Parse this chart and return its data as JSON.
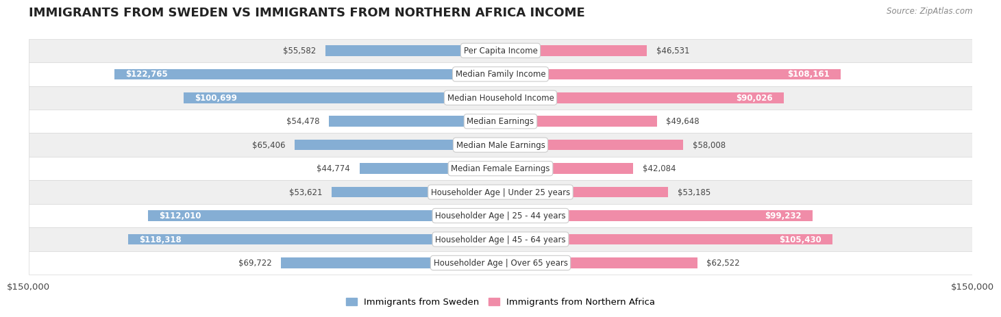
{
  "title": "IMMIGRANTS FROM SWEDEN VS IMMIGRANTS FROM NORTHERN AFRICA INCOME",
  "source": "Source: ZipAtlas.com",
  "categories": [
    "Per Capita Income",
    "Median Family Income",
    "Median Household Income",
    "Median Earnings",
    "Median Male Earnings",
    "Median Female Earnings",
    "Householder Age | Under 25 years",
    "Householder Age | 25 - 44 years",
    "Householder Age | 45 - 64 years",
    "Householder Age | Over 65 years"
  ],
  "sweden_values": [
    55582,
    122765,
    100699,
    54478,
    65406,
    44774,
    53621,
    112010,
    118318,
    69722
  ],
  "africa_values": [
    46531,
    108161,
    90026,
    49648,
    58008,
    42084,
    53185,
    99232,
    105430,
    62522
  ],
  "sweden_color": "#85aed4",
  "africa_color": "#f08ca8",
  "row_bg_odd": "#efefef",
  "row_bg_even": "#ffffff",
  "row_border": "#d8d8d8",
  "max_value": 150000,
  "bar_height": 0.45,
  "sweden_legend": "Immigrants from Sweden",
  "africa_legend": "Immigrants from Northern Africa",
  "x_tick_labels": [
    "$150,000",
    "$150,000"
  ],
  "inside_label_threshold": 75000,
  "label_inside_color": "#ffffff",
  "label_outside_color": "#444444",
  "label_fontsize": 8.5,
  "cat_fontsize": 8.5,
  "title_fontsize": 13,
  "source_fontsize": 8.5
}
